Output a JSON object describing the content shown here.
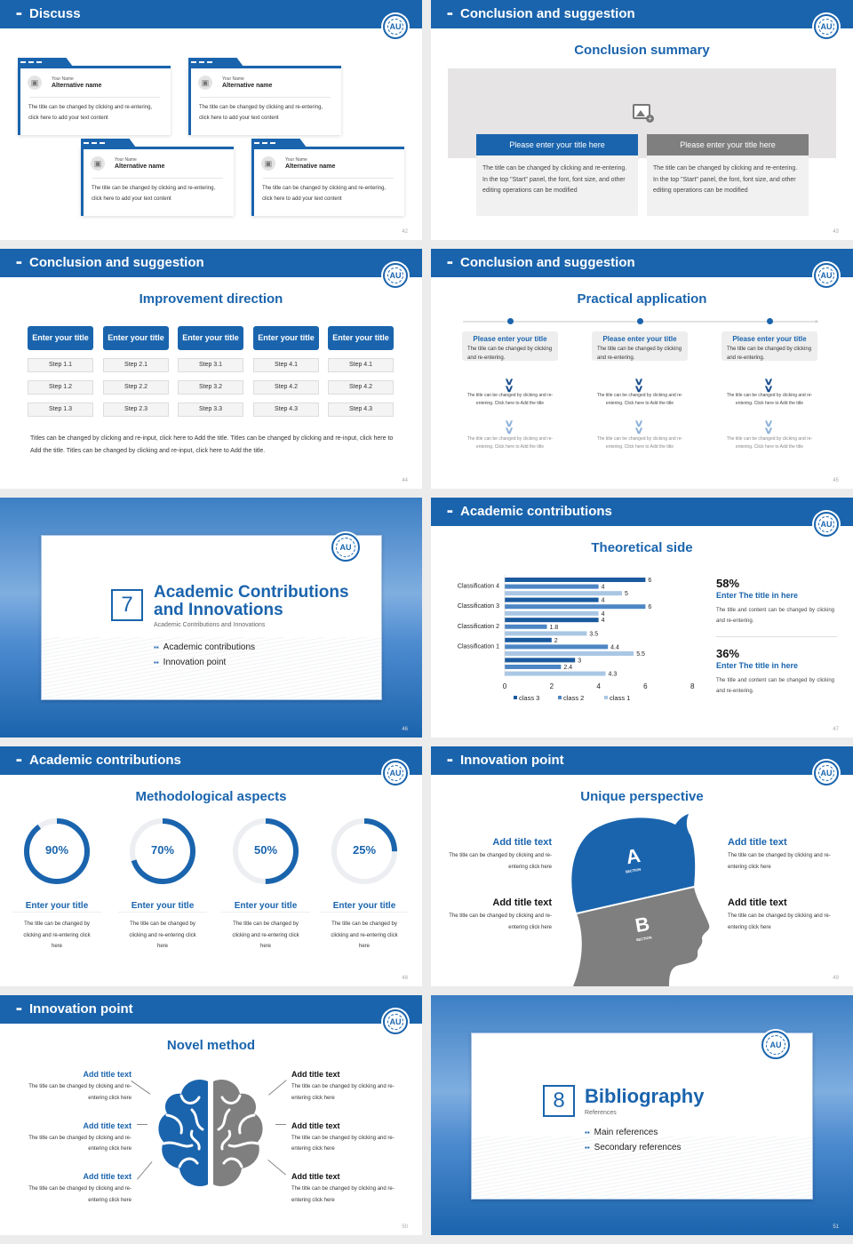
{
  "header_icon": "grid-dots-icon",
  "logo_text": "AU",
  "colors": {
    "primary": "#1a64ad",
    "gray": "#808080",
    "light": "#a9c7e4"
  },
  "s42": {
    "header": "Discuss",
    "page": "42",
    "cards": [
      {
        "your_name": "Your Name",
        "alt": "Alternative name",
        "text": "The title can be changed by clicking and re-entering, click here to add your text content"
      },
      {
        "your_name": "Your Name",
        "alt": "Alternative name",
        "text": "The title can be changed by clicking and re-entering, click here to add your text content"
      },
      {
        "your_name": "Your Name",
        "alt": "Alternative name",
        "text": "The title can be changed by clicking and re-entering, click here to add your text content"
      },
      {
        "your_name": "Your Name",
        "alt": "Alternative name",
        "text": "The title can be changed by clicking and re-entering, click here to add your text content"
      }
    ]
  },
  "s43": {
    "header": "Conclusion and suggestion",
    "title": "Conclusion summary",
    "page": "43",
    "boxes": [
      {
        "title": "Please enter your title here",
        "text": "The title can be changed by clicking and re-entering. In the top \"Start\" panel, the font, font size, and other editing operations can be modified"
      },
      {
        "title": "Please enter your title here",
        "text": "The title can be changed by clicking and re-entering. In the top \"Start\" panel, the font, font size, and other editing operations can be modified"
      }
    ]
  },
  "s44": {
    "header": "Conclusion and suggestion",
    "title": "Improvement direction",
    "page": "44",
    "columns": [
      {
        "title": "Enter your title",
        "steps": [
          "Step 1.1",
          "Step 1.2",
          "Step 1.3"
        ]
      },
      {
        "title": "Enter your title",
        "steps": [
          "Step 2.1",
          "Step 2.2",
          "Step 2.3"
        ]
      },
      {
        "title": "Enter your title",
        "steps": [
          "Step 3.1",
          "Step 3.2",
          "Step 3.3"
        ]
      },
      {
        "title": "Enter your title",
        "steps": [
          "Step 4.1",
          "Step 4.2",
          "Step 4.3"
        ]
      },
      {
        "title": "Enter your title",
        "steps": [
          "Step 4.1",
          "Step 4.2",
          "Step 4.3"
        ]
      }
    ],
    "paragraph": "Titles can be changed by clicking and re-input, click here to Add the title. Titles can be changed by clicking and re-input, click here to Add the title. Titles can be changed by clicking and re-input, click here to Add the title."
  },
  "s45": {
    "header": "Conclusion and suggestion",
    "title": "Practical application",
    "page": "45",
    "items": [
      {
        "title": "Please enter your title",
        "text": "The title can be changed by clicking and re-entering.",
        "d1": "The title can be changed by clicking and re-entering. Click here to Add the title",
        "d2": "The title can be changed by clicking and re-entering. Click here to Add the title"
      },
      {
        "title": "Please enter your title",
        "text": "The title can be changed by clicking and re-entering.",
        "d1": "The title can be changed by clicking and re-entering. Click here to Add the title",
        "d2": "The title can be changed by clicking and re-entering. Click here to Add the title"
      },
      {
        "title": "Please enter your title",
        "text": "The title can be changed by clicking and re-entering.",
        "d1": "The title can be changed by clicking and re-entering. Click here to Add the title",
        "d2": "The title can be changed by clicking and re-entering. Click here to Add the title"
      }
    ]
  },
  "s46": {
    "number": "7",
    "title": "Academic Contributions and Innovations",
    "subtitle": "Academic Contributions and Innovations",
    "bullets": [
      "Academic contributions",
      "Innovation point"
    ],
    "page": "46"
  },
  "s47": {
    "header": "Academic contributions",
    "title": "Theoretical side",
    "page": "47",
    "stats": [
      {
        "value": "58%",
        "title": "Enter The title in here",
        "text": "The title and content can be changed by clicking and re-entering."
      },
      {
        "value": "36%",
        "title": "Enter The title in here",
        "text": "The title and content can be changed by clicking and re-entering."
      }
    ]
  },
  "chart_data": {
    "type": "bar",
    "orientation": "horizontal",
    "categories": [
      "Classification 4",
      "Classification 3",
      "Classification 2",
      "Classification 1",
      ""
    ],
    "series": [
      {
        "name": "class 3",
        "color": "#1a5a9e",
        "values": [
          6,
          4,
          4,
          2,
          3
        ]
      },
      {
        "name": "class 2",
        "color": "#4d86c4",
        "values": [
          4,
          6,
          1.8,
          4.4,
          2.4
        ]
      },
      {
        "name": "class 1",
        "color": "#a9c7e4",
        "values": [
          5,
          4,
          3.5,
          5.5,
          4.3
        ]
      }
    ],
    "xlim": [
      0,
      8
    ],
    "xticks": [
      "0",
      "2",
      "4",
      "6",
      "8"
    ],
    "legend": "bottom",
    "grid": false
  },
  "s48": {
    "header": "Academic contributions",
    "title": "Methodological aspects",
    "page": "48",
    "rings": [
      {
        "percent": 90,
        "label": "90%",
        "title": "Enter your title",
        "text": "The title can be changed by clicking and re-entering click here"
      },
      {
        "percent": 70,
        "label": "70%",
        "title": "Enter your title",
        "text": "The title can be changed by clicking and re-entering click here"
      },
      {
        "percent": 50,
        "label": "50%",
        "title": "Enter your title",
        "text": "The title can be changed by clicking and re-entering click here"
      },
      {
        "percent": 25,
        "label": "25%",
        "title": "Enter your title",
        "text": "The title can be changed by clicking and re-entering click here"
      }
    ]
  },
  "s49": {
    "header": "Innovation point",
    "title": "Unique perspective",
    "page": "49",
    "section_a": "A",
    "section_b": "B",
    "section_word": "SECTION",
    "items": [
      {
        "title": "Add title text",
        "text": "The title can be changed by clicking and re-entering click here"
      },
      {
        "title": "Add title text",
        "text": "The title can be changed by clicking and re-entering click here"
      },
      {
        "title": "Add title text",
        "text": "The title can be changed by clicking and re-entering click here"
      },
      {
        "title": "Add title text",
        "text": "The title can be changed by clicking and re-entering click here"
      }
    ]
  },
  "s50": {
    "header": "Innovation point",
    "title": "Novel method",
    "page": "50",
    "items": [
      {
        "title": "Add title text",
        "text": "The title can be changed by clicking and re-entering click here"
      },
      {
        "title": "Add title text",
        "text": "The title can be changed by clicking and re-entering click here"
      },
      {
        "title": "Add title text",
        "text": "The title can be changed by clicking and re-entering click here"
      },
      {
        "title": "Add title text",
        "text": "The title can be changed by clicking and re-entering click here"
      },
      {
        "title": "Add title text",
        "text": "The title can be changed by clicking and re-entering click here"
      },
      {
        "title": "Add title text",
        "text": "The title can be changed by clicking and re-entering click here"
      }
    ]
  },
  "s51": {
    "number": "8",
    "title": "Bibliography",
    "subtitle": "References",
    "bullets": [
      "Main references",
      "Secondary references"
    ],
    "page": "51"
  }
}
